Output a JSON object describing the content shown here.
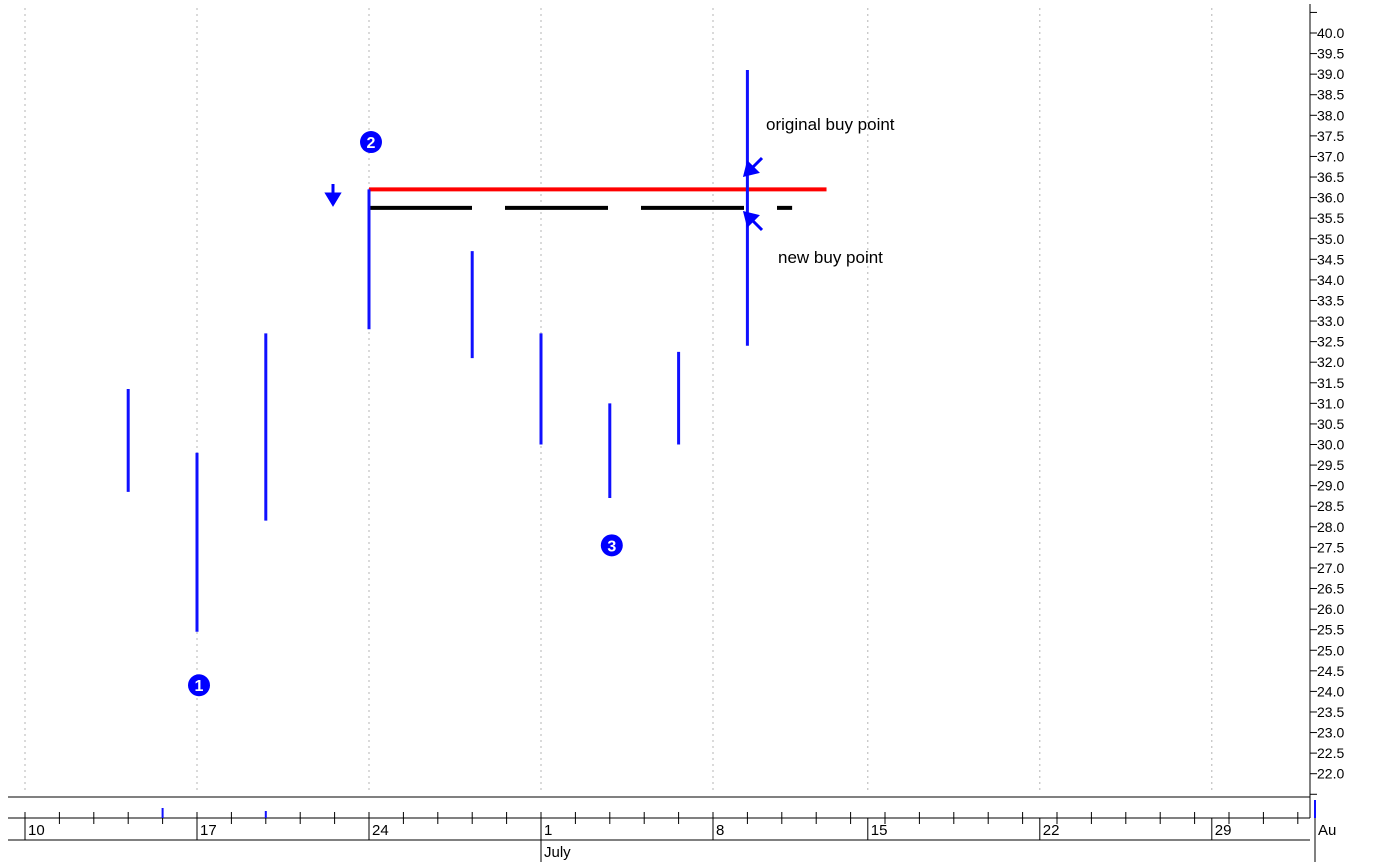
{
  "chart_data": {
    "type": "bar",
    "subtype": "ohlc-range",
    "colors": {
      "bars": "#1010ff",
      "original_buy_line": "#ff0000",
      "new_buy_line": "#000000",
      "markers": "#0000ff",
      "grid": "#b4b4b4",
      "text": "#000000"
    },
    "y_axis": {
      "position": "right",
      "ylim": [
        21.5,
        40.5
      ],
      "tick_step": 0.5,
      "labeled_from": 22.0,
      "labeled_to": 40.0
    },
    "x_axis": {
      "date_labels": [
        "10",
        "17",
        "24",
        "1",
        "8",
        "15",
        "22",
        "29",
        "Au"
      ],
      "month_labels": [
        "July",
        "Au"
      ],
      "grid": "dotted"
    },
    "bars": [
      {
        "x": 3,
        "low": 28.85,
        "high": 31.35
      },
      {
        "x": 5,
        "low": 25.45,
        "high": 29.8
      },
      {
        "x": 7,
        "low": 28.15,
        "high": 32.7
      },
      {
        "x": 10,
        "low": 32.8,
        "high": 36.2
      },
      {
        "x": 13,
        "low": 32.1,
        "high": 34.7
      },
      {
        "x": 15,
        "low": 30.0,
        "high": 32.7
      },
      {
        "x": 17,
        "low": 28.7,
        "high": 31.0
      },
      {
        "x": 19,
        "low": 30.0,
        "high": 32.25
      },
      {
        "x": 21,
        "low": 32.4,
        "high": 39.1
      }
    ],
    "buy_lines": {
      "original": {
        "value": 36.2,
        "x_start": 10,
        "x_end": 23.3
      },
      "new": {
        "value": 35.75,
        "x_start": 10,
        "x_end": 22.3
      }
    },
    "annotations": {
      "original_buy_point": "original buy point",
      "new_buy_point": "new buy point"
    },
    "markers": [
      {
        "label": "1",
        "x": 5,
        "y": 24.15
      },
      {
        "label": "2",
        "x": 10,
        "y": 37.35
      },
      {
        "label": "3",
        "x": 17,
        "y": 27.55
      }
    ]
  }
}
